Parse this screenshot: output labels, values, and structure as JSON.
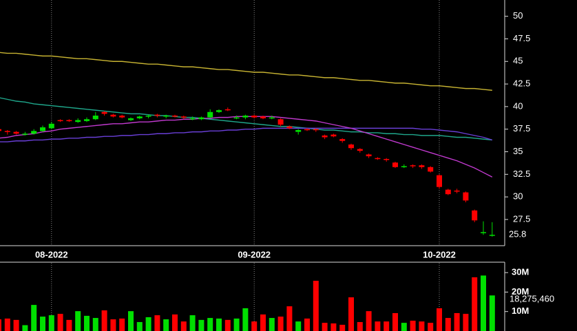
{
  "chart_data": [
    {
      "type": "candlestick",
      "categories": [
        null,
        null,
        null,
        null,
        null,
        null,
        "08-2022",
        null,
        null,
        null,
        null,
        null,
        null,
        null,
        null,
        null,
        null,
        null,
        null,
        null,
        null,
        null,
        null,
        null,
        null,
        null,
        null,
        null,
        null,
        "09-2022",
        null,
        null,
        null,
        null,
        null,
        null,
        null,
        null,
        null,
        null,
        null,
        null,
        null,
        null,
        null,
        null,
        null,
        null,
        null,
        null,
        "10-2022",
        null,
        null,
        null,
        null,
        null,
        null
      ],
      "ohlc": [
        [
          37.5,
          37.7,
          37.1,
          37.3
        ],
        [
          37.3,
          37.4,
          36.9,
          37.2
        ],
        [
          37.2,
          37.3,
          36.9,
          37.0
        ],
        [
          36.9,
          37.2,
          36.8,
          37.0
        ],
        [
          37.0,
          37.5,
          36.9,
          37.3
        ],
        [
          37.3,
          37.9,
          37.2,
          37.7
        ],
        [
          37.6,
          38.3,
          37.5,
          38.1
        ],
        [
          38.5,
          38.6,
          38.3,
          38.4
        ],
        [
          38.5,
          38.6,
          38.3,
          38.4
        ],
        [
          38.3,
          38.7,
          38.2,
          38.5
        ],
        [
          38.4,
          38.8,
          38.3,
          38.6
        ],
        [
          38.6,
          39.4,
          38.5,
          39.0
        ],
        [
          39.4,
          39.5,
          39.0,
          39.2
        ],
        [
          39.1,
          39.2,
          38.8,
          38.9
        ],
        [
          39.0,
          39.1,
          38.7,
          38.8
        ],
        [
          38.5,
          38.8,
          38.4,
          38.7
        ],
        [
          38.7,
          39.0,
          38.6,
          38.9
        ],
        [
          38.9,
          39.1,
          38.7,
          39.0
        ],
        [
          39.1,
          39.2,
          38.8,
          39.0
        ],
        [
          38.9,
          39.1,
          38.7,
          39.0
        ],
        [
          39.0,
          39.1,
          38.8,
          38.9
        ],
        [
          38.9,
          39.0,
          38.6,
          38.8
        ],
        [
          38.7,
          38.9,
          38.5,
          38.7
        ],
        [
          38.6,
          38.9,
          38.5,
          38.8
        ],
        [
          38.8,
          39.7,
          38.7,
          39.4
        ],
        [
          39.4,
          39.7,
          39.3,
          39.6
        ],
        [
          39.7,
          39.9,
          39.5,
          39.6
        ],
        [
          38.7,
          39.0,
          38.6,
          38.8
        ],
        [
          38.8,
          39.1,
          38.6,
          39.0
        ],
        [
          39.0,
          39.1,
          38.7,
          38.8
        ],
        [
          38.9,
          39.0,
          38.6,
          38.7
        ],
        [
          38.7,
          39.0,
          38.6,
          38.8
        ],
        [
          38.6,
          38.7,
          37.8,
          38.0
        ],
        [
          37.8,
          37.9,
          37.5,
          37.6
        ],
        [
          37.2,
          37.5,
          36.9,
          37.4
        ],
        [
          37.5,
          37.6,
          37.3,
          37.4
        ],
        [
          37.5,
          37.6,
          37.2,
          37.4
        ],
        [
          36.8,
          36.9,
          36.4,
          36.6
        ],
        [
          36.9,
          37.0,
          36.6,
          36.7
        ],
        [
          36.4,
          36.5,
          36.0,
          36.2
        ],
        [
          35.8,
          35.9,
          35.2,
          35.4
        ],
        [
          35.3,
          35.4,
          34.9,
          35.1
        ],
        [
          34.7,
          34.8,
          34.3,
          34.5
        ],
        [
          34.3,
          34.4,
          34.1,
          34.2
        ],
        [
          34.2,
          34.3,
          33.9,
          34.1
        ],
        [
          33.8,
          33.9,
          33.2,
          33.3
        ],
        [
          33.4,
          33.6,
          33.2,
          33.4
        ],
        [
          33.5,
          33.6,
          33.2,
          33.4
        ],
        [
          33.5,
          33.6,
          33.1,
          33.3
        ],
        [
          33.3,
          33.4,
          32.7,
          32.8
        ],
        [
          32.4,
          32.5,
          30.9,
          31.1
        ],
        [
          30.8,
          30.9,
          30.2,
          30.3
        ],
        [
          30.7,
          30.9,
          30.4,
          30.6
        ],
        [
          30.5,
          30.6,
          29.4,
          29.6
        ],
        [
          28.5,
          28.6,
          27.2,
          27.4
        ],
        [
          26.0,
          27.3,
          25.8,
          26.1
        ],
        [
          25.7,
          27.2,
          25.6,
          25.8
        ]
      ],
      "up_color": "#00e000",
      "down_color": "#ff0000",
      "series": [
        {
          "color": "#c8b432",
          "values": [
            46.0,
            45.9,
            45.9,
            45.8,
            45.7,
            45.6,
            45.6,
            45.5,
            45.4,
            45.3,
            45.3,
            45.2,
            45.1,
            45.0,
            45.0,
            44.9,
            44.8,
            44.7,
            44.7,
            44.6,
            44.5,
            44.4,
            44.4,
            44.3,
            44.2,
            44.1,
            44.1,
            44.0,
            43.9,
            43.8,
            43.8,
            43.7,
            43.6,
            43.5,
            43.5,
            43.4,
            43.3,
            43.2,
            43.2,
            43.1,
            43.0,
            42.9,
            42.9,
            42.8,
            42.7,
            42.6,
            42.6,
            42.5,
            42.4,
            42.3,
            42.3,
            42.2,
            42.1,
            42.0,
            42.0,
            41.9,
            41.8
          ]
        },
        {
          "color": "#1fa88c",
          "values": [
            41.0,
            40.8,
            40.6,
            40.5,
            40.3,
            40.2,
            40.1,
            40.0,
            39.9,
            39.8,
            39.7,
            39.6,
            39.5,
            39.4,
            39.3,
            39.2,
            39.2,
            39.1,
            39.0,
            39.0,
            38.9,
            38.8,
            38.8,
            38.7,
            38.6,
            38.5,
            38.4,
            38.3,
            38.2,
            38.1,
            38.0,
            37.9,
            37.8,
            37.8,
            37.7,
            37.6,
            37.5,
            37.4,
            37.4,
            37.3,
            37.2,
            37.2,
            37.1,
            37.1,
            37.0,
            37.0,
            36.9,
            36.9,
            36.8,
            36.8,
            36.8,
            36.7,
            36.6,
            36.6,
            36.5,
            36.4,
            36.3
          ]
        },
        {
          "color": "#6a3fd8",
          "values": [
            36.1,
            36.1,
            36.2,
            36.2,
            36.3,
            36.3,
            36.4,
            36.4,
            36.5,
            36.5,
            36.6,
            36.6,
            36.7,
            36.7,
            36.8,
            36.8,
            36.9,
            36.9,
            37.0,
            37.0,
            37.1,
            37.1,
            37.2,
            37.2,
            37.3,
            37.3,
            37.4,
            37.4,
            37.5,
            37.5,
            37.6,
            37.6,
            37.6,
            37.6,
            37.6,
            37.6,
            37.6,
            37.6,
            37.6,
            37.6,
            37.6,
            37.6,
            37.6,
            37.6,
            37.6,
            37.6,
            37.6,
            37.6,
            37.5,
            37.5,
            37.4,
            37.3,
            37.2,
            37.0,
            36.8,
            36.6,
            36.3
          ]
        },
        {
          "color": "#c23ad0",
          "values": [
            36.5,
            36.6,
            36.8,
            36.9,
            37.0,
            37.2,
            37.3,
            37.5,
            37.6,
            37.7,
            37.8,
            37.9,
            38.0,
            38.1,
            38.1,
            38.2,
            38.3,
            38.3,
            38.4,
            38.5,
            38.5,
            38.6,
            38.6,
            38.7,
            38.7,
            38.8,
            38.8,
            38.9,
            38.9,
            38.9,
            38.9,
            38.9,
            38.8,
            38.7,
            38.6,
            38.5,
            38.4,
            38.2,
            38.0,
            37.8,
            37.6,
            37.3,
            37.0,
            36.7,
            36.4,
            36.1,
            35.8,
            35.5,
            35.2,
            34.9,
            34.6,
            34.3,
            34.0,
            33.6,
            33.2,
            32.7,
            32.2
          ]
        }
      ],
      "last_value": 25.8,
      "ylim": [
        24.6,
        51.8
      ],
      "yticks": [
        50,
        47.5,
        45,
        42.5,
        40,
        37.5,
        35,
        32.5,
        30,
        27.5
      ],
      "grid": true
    },
    {
      "type": "bar",
      "values": [
        6.0,
        6.4,
        5.7,
        3.0,
        13.4,
        7.4,
        8.1,
        8.8,
        5.7,
        10.2,
        7.8,
        6.7,
        10.6,
        6.0,
        6.4,
        10.2,
        4.6,
        7.1,
        8.1,
        6.0,
        8.5,
        4.9,
        8.1,
        5.7,
        6.7,
        6.4,
        5.7,
        6.4,
        11.7,
        4.9,
        8.5,
        6.7,
        7.4,
        12.7,
        4.9,
        6.4,
        25.8,
        4.2,
        3.9,
        3.2,
        17.3,
        4.6,
        10.2,
        4.9,
        4.9,
        9.2,
        4.2,
        5.3,
        4.9,
        4.2,
        11.7,
        6.7,
        9.2,
        8.8,
        27.6,
        28.5,
        18.27546
      ],
      "value_labels": [
        null,
        null,
        null,
        null,
        null,
        null,
        null,
        null,
        null,
        null,
        null,
        null,
        null,
        null,
        null,
        null,
        null,
        null,
        null,
        null,
        null,
        null,
        null,
        null,
        null,
        null,
        null,
        null,
        null,
        null,
        null,
        null,
        null,
        null,
        null,
        null,
        null,
        null,
        null,
        null,
        null,
        null,
        null,
        null,
        null,
        null,
        null,
        null,
        null,
        null,
        null,
        null,
        null,
        null,
        null,
        null,
        "18,275,460"
      ],
      "ylim": [
        0,
        35
      ],
      "yticks": [
        {
          "value": 10,
          "label": "10M"
        },
        {
          "value": 20,
          "label": "20M"
        },
        {
          "value": 30,
          "label": "30M"
        }
      ]
    }
  ]
}
